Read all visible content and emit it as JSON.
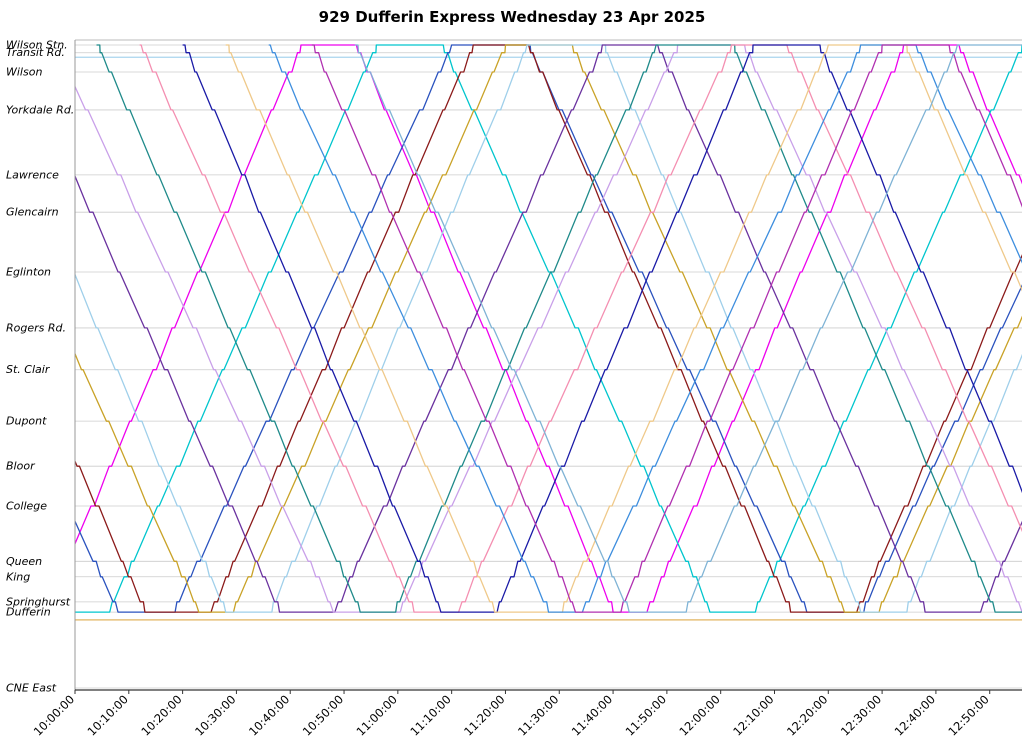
{
  "title": "929 Dufferin Express Wednesday 23 Apr 2025",
  "chart_data": {
    "type": "line",
    "subtype": "marey-time-distance-diagram",
    "title": "929 Dufferin Express Wednesday 23 Apr 2025",
    "grid": true,
    "legend": "none",
    "x_axis": {
      "start": "10:00:00",
      "end": "12:56:00",
      "tick_interval_min": 10,
      "tick_labels": [
        "10:00:00",
        "10:10:00",
        "10:20:00",
        "10:30:00",
        "10:40:00",
        "10:50:00",
        "11:00:00",
        "11:10:00",
        "11:20:00",
        "11:30:00",
        "11:40:00",
        "11:50:00",
        "12:00:00",
        "12:10:00",
        "12:20:00",
        "12:30:00",
        "12:40:00",
        "12:50:00"
      ]
    },
    "stations": [
      {
        "name": "Wilson Stn.",
        "pos": 0.0
      },
      {
        "name": "Transit Rd.",
        "pos": 0.012
      },
      {
        "name": "Wilson",
        "pos": 0.042
      },
      {
        "name": "Yorkdale Rd.",
        "pos": 0.101
      },
      {
        "name": "Lawrence",
        "pos": 0.202
      },
      {
        "name": "Glencairn",
        "pos": 0.26
      },
      {
        "name": "Eglinton",
        "pos": 0.353
      },
      {
        "name": "Rogers Rd.",
        "pos": 0.44
      },
      {
        "name": "St. Clair",
        "pos": 0.505
      },
      {
        "name": "Dupont",
        "pos": 0.585
      },
      {
        "name": "Bloor",
        "pos": 0.655
      },
      {
        "name": "College",
        "pos": 0.717
      },
      {
        "name": "Queen",
        "pos": 0.803
      },
      {
        "name": "King",
        "pos": 0.827
      },
      {
        "name": "Springhurst",
        "pos": 0.866
      },
      {
        "name": "Dufferin",
        "pos": 0.882
      },
      {
        "name": "CNE East",
        "pos": 1.0
      }
    ],
    "turnaround_index": 15,
    "cycles": 3,
    "flat_lines": [
      {
        "pos": 0.019,
        "color": "#aad4ee",
        "width": 1.2
      },
      {
        "pos": 0.894,
        "color": "#e6c07a",
        "width": 1.5
      }
    ],
    "service": {
      "headway_min": 8,
      "vehicles": [
        {
          "id": 1,
          "first_south_departure": "09:00",
          "run_min": 48,
          "bottom_layover_min": 6,
          "top_layover_min": 10,
          "color": "#EE00EE"
        },
        {
          "id": 2,
          "first_south_departure": "09:08",
          "run_min": 50,
          "bottom_layover_min": 8,
          "top_layover_min": 12,
          "color": "#00C5CD"
        },
        {
          "id": 3,
          "first_south_departure": "09:16",
          "run_min": 52,
          "bottom_layover_min": 10,
          "top_layover_min": 14,
          "color": "#2A52BE"
        },
        {
          "id": 4,
          "first_south_departure": "09:24",
          "run_min": 49,
          "bottom_layover_min": 12,
          "top_layover_min": 10,
          "color": "#8B1A1A"
        },
        {
          "id": 5,
          "first_south_departure": "09:32",
          "run_min": 51,
          "bottom_layover_min": 6,
          "top_layover_min": 12,
          "color": "#C9A227"
        },
        {
          "id": 6,
          "first_south_departure": "09:40",
          "run_min": 48,
          "bottom_layover_min": 8,
          "top_layover_min": 14,
          "color": "#9FCFEA"
        },
        {
          "id": 7,
          "first_south_departure": "09:48",
          "run_min": 50,
          "bottom_layover_min": 10,
          "top_layover_min": 10,
          "color": "#6A329F"
        },
        {
          "id": 8,
          "first_south_departure": "09:56",
          "run_min": 52,
          "bottom_layover_min": 12,
          "top_layover_min": 12,
          "color": "#C9A0E9"
        },
        {
          "id": 9,
          "first_south_departure": "10:04",
          "run_min": 49,
          "bottom_layover_min": 6,
          "top_layover_min": 14,
          "color": "#1F8A8A"
        },
        {
          "id": 10,
          "first_south_departure": "10:12",
          "run_min": 51,
          "bottom_layover_min": 8,
          "top_layover_min": 10,
          "color": "#F48FB1"
        },
        {
          "id": 11,
          "first_south_departure": "10:20",
          "run_min": 48,
          "bottom_layover_min": 10,
          "top_layover_min": 12,
          "color": "#1A1AA6"
        },
        {
          "id": 12,
          "first_south_departure": "10:28",
          "run_min": 50,
          "bottom_layover_min": 12,
          "top_layover_min": 14,
          "color": "#EFC98A"
        },
        {
          "id": 13,
          "first_south_departure": "10:36",
          "run_min": 52,
          "bottom_layover_min": 6,
          "top_layover_min": 10,
          "color": "#3E8EDE"
        },
        {
          "id": 14,
          "first_south_departure": "10:44",
          "run_min": 49,
          "bottom_layover_min": 8,
          "top_layover_min": 12,
          "color": "#B030B0"
        },
        {
          "id": 15,
          "first_south_departure": "10:52",
          "run_min": 51,
          "bottom_layover_min": 10,
          "top_layover_min": 14,
          "color": "#7FB3D5"
        }
      ]
    }
  }
}
